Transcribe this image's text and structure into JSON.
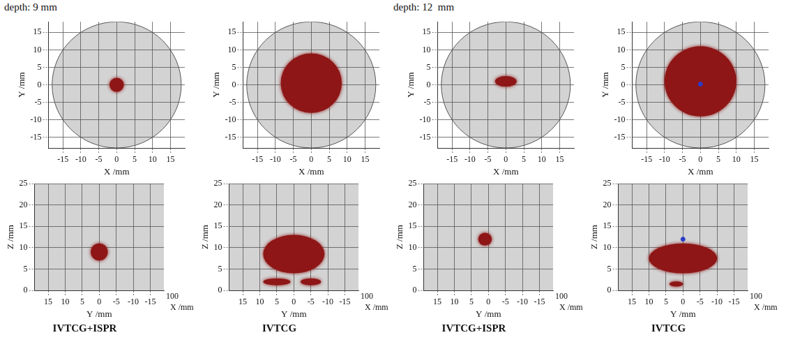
{
  "headings": [
    "depth: 9 mm",
    "depth: 12  mm"
  ],
  "chart_data": [
    {
      "type": "scatter",
      "x_label": "X /mm",
      "y_label": "Y /mm",
      "xlim": [
        -19,
        19
      ],
      "ylim": [
        -18,
        18
      ],
      "xticks": [
        -15,
        -10,
        -5,
        0,
        5,
        10,
        15
      ],
      "yticks": [
        -15,
        -10,
        -5,
        0,
        5,
        10,
        15
      ],
      "grid": true,
      "boundary_radius": 18,
      "color": "#8e1616",
      "regions": [
        {
          "cx": 0,
          "cy": 0,
          "rx": 2,
          "ry": 2
        }
      ],
      "points": []
    },
    {
      "type": "scatter",
      "x_label": "X /mm",
      "y_label": "Y /mm",
      "xlim": [
        -19,
        19
      ],
      "ylim": [
        -18,
        18
      ],
      "xticks": [
        -15,
        -10,
        -5,
        0,
        5,
        10,
        15
      ],
      "yticks": [
        -15,
        -10,
        -5,
        0,
        5,
        10,
        15
      ],
      "grid": true,
      "boundary_radius": 18,
      "color": "#8e1616",
      "regions": [
        {
          "cx": 0,
          "cy": 0.5,
          "rx": 8.5,
          "ry": 8.5
        }
      ],
      "points": []
    },
    {
      "type": "scatter",
      "x_label": "X /mm",
      "y_label": "Y /mm",
      "xlim": [
        -19,
        19
      ],
      "ylim": [
        -18,
        18
      ],
      "xticks": [
        -15,
        -10,
        -5,
        0,
        5,
        10,
        15
      ],
      "yticks": [
        -15,
        -10,
        -5,
        0,
        5,
        10,
        15
      ],
      "grid": true,
      "boundary_radius": 18,
      "color": "#8e1616",
      "regions": [
        {
          "cx": 0,
          "cy": 1,
          "rx": 3,
          "ry": 1.5
        }
      ],
      "points": []
    },
    {
      "type": "scatter",
      "x_label": "X /mm",
      "y_label": "Y /mm",
      "xlim": [
        -19,
        19
      ],
      "ylim": [
        -18,
        18
      ],
      "xticks": [
        -15,
        -10,
        -5,
        0,
        5,
        10,
        15
      ],
      "yticks": [
        -15,
        -10,
        -5,
        0,
        5,
        10,
        15
      ],
      "grid": true,
      "boundary_radius": 18,
      "color": "#8e1616",
      "regions": [
        {
          "cx": 0,
          "cy": 1,
          "rx": 10,
          "ry": 10
        }
      ],
      "points": [
        {
          "x": 0,
          "y": 0.2,
          "color": "#2a3cc8"
        }
      ]
    },
    {
      "type": "scatter",
      "title": "IVTCG+ISPR",
      "x_label": "Y /mm",
      "y_label": "Z /mm",
      "xlim": [
        19,
        -19
      ],
      "ylim": [
        0,
        25
      ],
      "xticks": [
        15,
        10,
        5,
        0,
        -5,
        -10,
        -15
      ],
      "yticks": [
        0,
        5,
        10,
        15,
        20,
        25
      ],
      "grid": true,
      "color": "#8e1616",
      "annotations": [
        "100",
        "X /mm"
      ],
      "regions": [
        {
          "cx": 0,
          "cy": 9,
          "rx": 2.5,
          "ry": 2
        }
      ],
      "points": []
    },
    {
      "type": "scatter",
      "title": "IVTCG",
      "x_label": "Y /mm",
      "y_label": "Z /mm",
      "xlim": [
        19,
        -19
      ],
      "ylim": [
        0,
        25
      ],
      "xticks": [
        15,
        10,
        5,
        0,
        -5,
        -10,
        -15
      ],
      "yticks": [
        0,
        5,
        10,
        15,
        20,
        25
      ],
      "grid": true,
      "color": "#8e1616",
      "annotations": [
        "100",
        "X /mm"
      ],
      "regions": [
        {
          "cx": 0,
          "cy": 8.5,
          "rx": 9,
          "ry": 4.5
        },
        {
          "cx": 5,
          "cy": 2,
          "rx": 4,
          "ry": 0.8
        },
        {
          "cx": -5,
          "cy": 2,
          "rx": 3,
          "ry": 0.8
        }
      ],
      "points": []
    },
    {
      "type": "scatter",
      "title": "IVTCG+ISPR",
      "x_label": "Y /mm",
      "y_label": "Z /mm",
      "xlim": [
        19,
        -19
      ],
      "ylim": [
        0,
        25
      ],
      "xticks": [
        15,
        10,
        5,
        0,
        -5,
        -10,
        -15
      ],
      "yticks": [
        0,
        5,
        10,
        15,
        20,
        25
      ],
      "grid": true,
      "color": "#8e1616",
      "annotations": [
        "100",
        "X /mm"
      ],
      "regions": [
        {
          "cx": 1,
          "cy": 12,
          "rx": 2,
          "ry": 1.5
        }
      ],
      "points": []
    },
    {
      "type": "scatter",
      "title": "IVTCG",
      "x_label": "Y /mm",
      "y_label": "Z /mm",
      "xlim": [
        19,
        -19
      ],
      "ylim": [
        0,
        25
      ],
      "xticks": [
        15,
        10,
        5,
        0,
        -5,
        -10,
        -15
      ],
      "yticks": [
        0,
        5,
        10,
        15,
        20,
        25
      ],
      "grid": true,
      "color": "#8e1616",
      "annotations": [
        "100",
        "X /mm"
      ],
      "regions": [
        {
          "cx": 0,
          "cy": 7.5,
          "rx": 10,
          "ry": 3.5
        },
        {
          "cx": 2,
          "cy": 1.5,
          "rx": 2,
          "ry": 0.6
        }
      ],
      "points": [
        {
          "x": 0,
          "y": 12,
          "color": "#2a3cc8"
        }
      ]
    }
  ]
}
